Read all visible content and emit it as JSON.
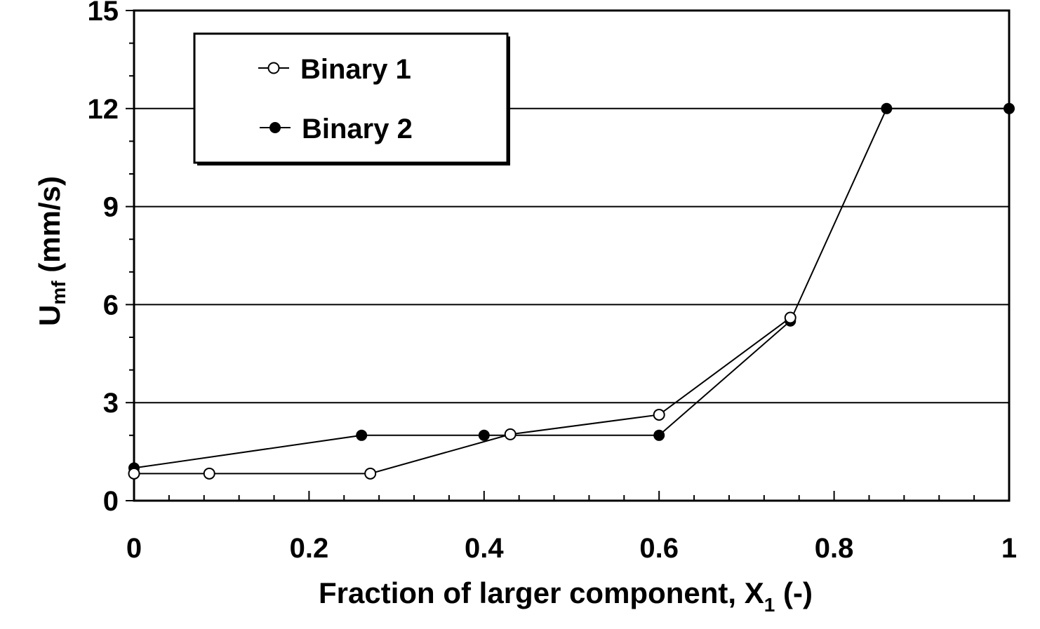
{
  "chart_data": {
    "type": "line",
    "xlabel": "Fraction of larger component, X",
    "xlabel_subscript": "1",
    "xlabel_suffix": " (-)",
    "ylabel": "U",
    "ylabel_subscript": "mf",
    "ylabel_suffix": " (mm/s)",
    "xlim": [
      0,
      1
    ],
    "ylim": [
      0,
      15
    ],
    "x_ticks": [
      0,
      0.2,
      0.4,
      0.6,
      0.8,
      1
    ],
    "x_tick_labels": [
      "0",
      "0.2",
      "0.4",
      "0.6",
      "0.8",
      "1"
    ],
    "y_ticks": [
      0,
      3,
      6,
      9,
      12,
      15
    ],
    "y_tick_labels": [
      "0",
      "3",
      "6",
      "9",
      "12",
      "15"
    ],
    "grid": "horizontal",
    "legend_position": "top-left",
    "series": [
      {
        "name": "Binary 1",
        "marker": "open-circle",
        "x": [
          0,
          0.086,
          0.27,
          0.43,
          0.6,
          0.75
        ],
        "y": [
          0.83,
          0.83,
          0.83,
          2.03,
          2.63,
          5.6
        ]
      },
      {
        "name": "Binary 2",
        "marker": "filled-circle",
        "x": [
          0,
          0.26,
          0.4,
          0.6,
          0.75,
          0.86,
          1.0
        ],
        "y": [
          1.0,
          2.0,
          2.0,
          2.0,
          5.5,
          12.0,
          12.0
        ]
      }
    ]
  }
}
